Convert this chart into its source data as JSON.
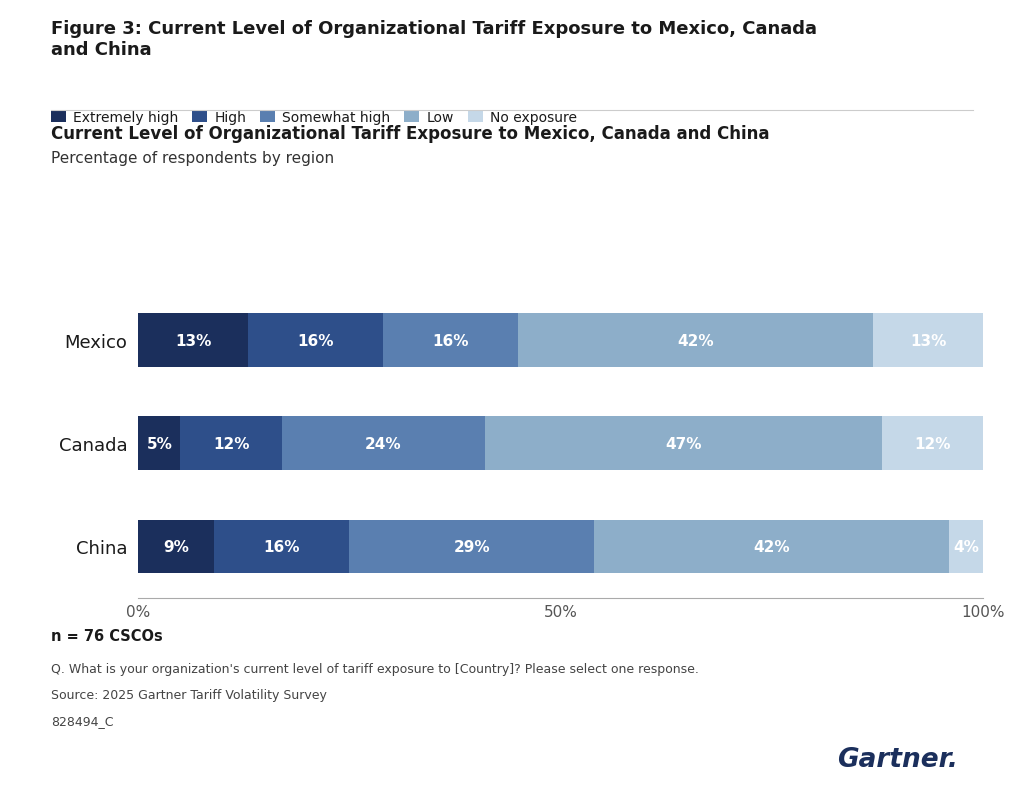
{
  "figure_title": "Figure 3: Current Level of Organizational Tariff Exposure to Mexico, Canada\nand China",
  "chart_title": "Current Level of Organizational Tariff Exposure to Mexico, Canada and China",
  "subtitle": "Percentage of respondents by region",
  "categories": [
    "Mexico",
    "Canada",
    "China"
  ],
  "series": [
    {
      "name": "Extremely high",
      "values": [
        13,
        5,
        9
      ],
      "color": "#1b2f5c"
    },
    {
      "name": "High",
      "values": [
        16,
        12,
        16
      ],
      "color": "#2e4f8a"
    },
    {
      "name": "Somewhat high",
      "values": [
        16,
        24,
        29
      ],
      "color": "#5a7fb0"
    },
    {
      "name": "Low",
      "values": [
        42,
        47,
        42
      ],
      "color": "#8daec9"
    },
    {
      "name": "No exposure",
      "values": [
        13,
        12,
        4
      ],
      "color": "#c5d8e8"
    }
  ],
  "note1": "n = 76 CSCOs",
  "note2": "Q. What is your organization's current level of tariff exposure to [Country]? Please select one response.",
  "note3": "Source: 2025 Gartner Tariff Volatility Survey",
  "note4": "828494_C",
  "gartner_text": "Gartner.",
  "bg_color": "#ffffff",
  "text_color": "#1a1a1a",
  "bar_height": 0.52,
  "xticks": [
    0,
    50,
    100
  ],
  "xlim": [
    0,
    100
  ]
}
